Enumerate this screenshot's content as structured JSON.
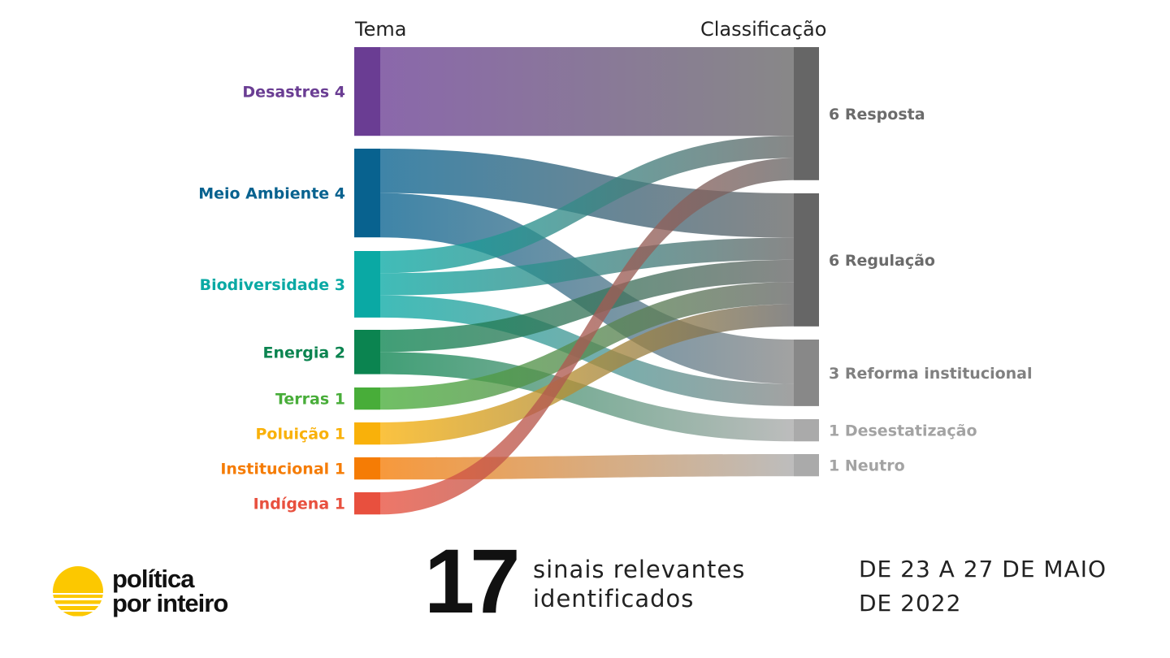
{
  "headers": {
    "left": "Tema",
    "right": "Classificação"
  },
  "chart_data": {
    "type": "sankey",
    "sources": [
      {
        "name": "Desastres",
        "value": 4,
        "label": "Desastres 4",
        "color": "#6a3d93"
      },
      {
        "name": "Meio Ambiente",
        "value": 4,
        "label": "Meio Ambiente 4",
        "color": "#08628f"
      },
      {
        "name": "Biodiversidade",
        "value": 3,
        "label": "Biodiversidade 3",
        "color": "#0aa9a4"
      },
      {
        "name": "Energia",
        "value": 2,
        "label": "Energia 2",
        "color": "#0b8450"
      },
      {
        "name": "Terras",
        "value": 1,
        "label": "Terras 1",
        "color": "#48ad39"
      },
      {
        "name": "Poluição",
        "value": 1,
        "label": "Poluição 1",
        "color": "#f9b10a"
      },
      {
        "name": "Institucional",
        "value": 1,
        "label": "Institucional 1",
        "color": "#f57c05"
      },
      {
        "name": "Indígena",
        "value": 1,
        "label": "Indígena 1",
        "color": "#e8503e"
      }
    ],
    "targets": [
      {
        "name": "Resposta",
        "value": 6,
        "label": "6 Resposta",
        "color": "#666666",
        "label_color": "#6b6b6b"
      },
      {
        "name": "Regulação",
        "value": 6,
        "label": "6 Regulação",
        "color": "#666666",
        "label_color": "#6b6b6b"
      },
      {
        "name": "Reforma institucional",
        "value": 3,
        "label": "3 Reforma institucional",
        "color": "#888888",
        "label_color": "#808080"
      },
      {
        "name": "Desestatização",
        "value": 1,
        "label": "1 Desestatização",
        "color": "#aaaaaa",
        "label_color": "#a3a3a3"
      },
      {
        "name": "Neutro",
        "value": 1,
        "label": "1 Neutro",
        "color": "#aaaaaa",
        "label_color": "#a3a3a3"
      }
    ],
    "links": [
      {
        "source": "Desastres",
        "target": "Resposta",
        "value": 4
      },
      {
        "source": "Meio Ambiente",
        "target": "Regulação",
        "value": 2
      },
      {
        "source": "Meio Ambiente",
        "target": "Reforma institucional",
        "value": 2
      },
      {
        "source": "Biodiversidade",
        "target": "Resposta",
        "value": 1
      },
      {
        "source": "Biodiversidade",
        "target": "Regulação",
        "value": 1
      },
      {
        "source": "Biodiversidade",
        "target": "Reforma institucional",
        "value": 1
      },
      {
        "source": "Energia",
        "target": "Regulação",
        "value": 1
      },
      {
        "source": "Energia",
        "target": "Desestatização",
        "value": 1
      },
      {
        "source": "Terras",
        "target": "Regulação",
        "value": 1
      },
      {
        "source": "Poluição",
        "target": "Regulação",
        "value": 1
      },
      {
        "source": "Institucional",
        "target": "Neutro",
        "value": 1
      },
      {
        "source": "Indígena",
        "target": "Resposta",
        "value": 1
      }
    ]
  },
  "footer": {
    "logo": {
      "text": [
        "política",
        "por inteiro"
      ],
      "color": "#fcc800"
    },
    "count": "17",
    "count_caption": [
      "sinais relevantes",
      "identificados"
    ],
    "date_range": "DE 23 A 27 DE MAIO DE 2022"
  }
}
